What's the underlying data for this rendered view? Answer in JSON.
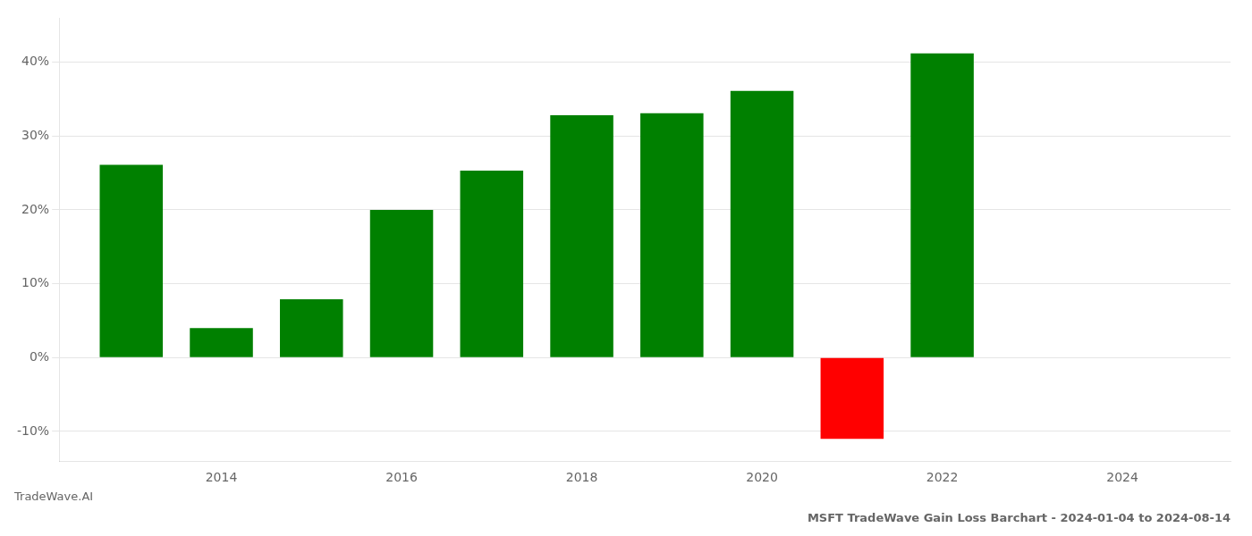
{
  "chart_data": {
    "type": "bar",
    "title": "MSFT TradeWave Gain Loss Barchart - 2024-01-04 to 2024-08-14",
    "annotations": [
      "TradeWave.AI"
    ],
    "x": [
      2013,
      2014,
      2015,
      2016,
      2017,
      2018,
      2019,
      2020,
      2021,
      2022
    ],
    "values": [
      26.1,
      4.0,
      7.9,
      20.0,
      25.3,
      32.8,
      33.1,
      36.1,
      -11.0,
      41.2
    ],
    "colors": [
      "#008000",
      "#008000",
      "#008000",
      "#008000",
      "#008000",
      "#008000",
      "#008000",
      "#008000",
      "#ff0000",
      "#008000"
    ],
    "xlim": [
      2012.2,
      2025.2
    ],
    "xticks": [
      2014,
      2016,
      2018,
      2020,
      2022,
      2024
    ],
    "ylim": [
      -14,
      46
    ],
    "yticks": [
      {
        "value": -10,
        "label": "-10%"
      },
      {
        "value": 0,
        "label": "0%"
      },
      {
        "value": 10,
        "label": "10%"
      },
      {
        "value": 20,
        "label": "20%"
      },
      {
        "value": 30,
        "label": "30%"
      },
      {
        "value": 40,
        "label": "40%"
      }
    ],
    "grid": true
  }
}
